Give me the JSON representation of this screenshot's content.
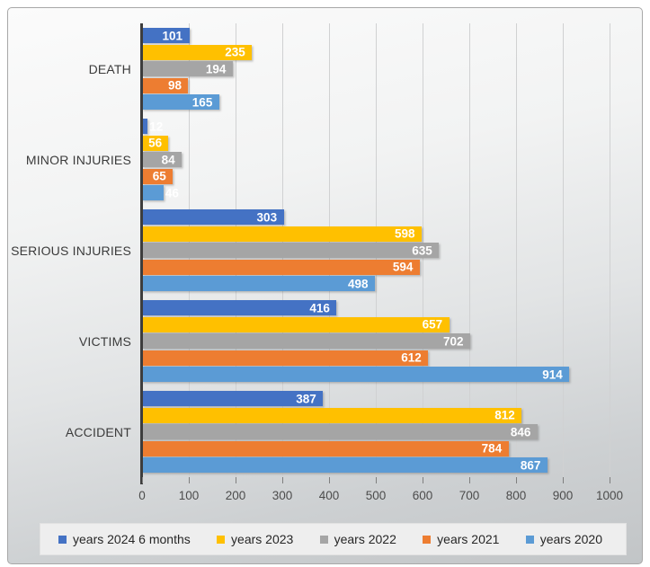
{
  "chart_data": {
    "type": "bar",
    "orientation": "horizontal",
    "title": "",
    "xlabel": "",
    "ylabel": "",
    "grid": true,
    "legend_position": "bottom",
    "data_labels": true,
    "categories": [
      "DEATH",
      "MINOR INJURIES",
      "SERIOUS INJURIES",
      "VICTIMS",
      "ACCIDENT"
    ],
    "series": [
      {
        "name": "years 2024 6 months",
        "color": "#4472C4",
        "values": [
          101,
          12,
          303,
          416,
          387
        ]
      },
      {
        "name": "years 2023",
        "color": "#FFC000",
        "values": [
          235,
          56,
          598,
          657,
          812
        ]
      },
      {
        "name": "years 2022",
        "color": "#A5A5A5",
        "values": [
          194,
          84,
          635,
          702,
          846
        ]
      },
      {
        "name": "years 2021",
        "color": "#ED7D31",
        "values": [
          98,
          65,
          594,
          612,
          784
        ]
      },
      {
        "name": "years 2020",
        "color": "#5B9BD5",
        "values": [
          165,
          46,
          498,
          914,
          867
        ]
      }
    ],
    "x_axis": {
      "min": 0,
      "max": 1000,
      "tick_interval": 100,
      "tick_labels": [
        "0",
        "100",
        "200",
        "300",
        "400",
        "500",
        "600",
        "700",
        "800",
        "900",
        "1000"
      ]
    }
  },
  "style_colors": {
    "axis_line": "#3d3d3d",
    "gridline": "#d0d1d2",
    "category_text": "#3b3b3b",
    "axis_text": "#4c4c4c",
    "data_label_text": "#ffffff",
    "legend_background": "#eeeeee"
  }
}
